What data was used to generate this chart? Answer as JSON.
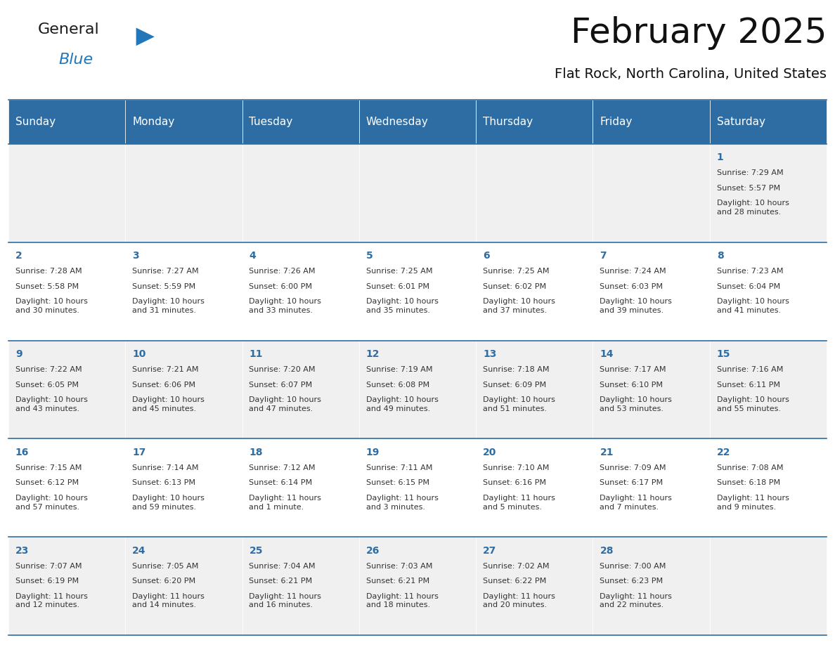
{
  "title": "February 2025",
  "subtitle": "Flat Rock, North Carolina, United States",
  "header_bg": "#2E6DA4",
  "header_text_color": "#FFFFFF",
  "cell_bg_even": "#F0F0F0",
  "cell_bg_odd": "#FFFFFF",
  "cell_text_color": "#333333",
  "day_number_color": "#2E6DA4",
  "separator_color": "#2E6DA4",
  "days_of_week": [
    "Sunday",
    "Monday",
    "Tuesday",
    "Wednesday",
    "Thursday",
    "Friday",
    "Saturday"
  ],
  "weeks": [
    [
      null,
      null,
      null,
      null,
      null,
      null,
      1
    ],
    [
      2,
      3,
      4,
      5,
      6,
      7,
      8
    ],
    [
      9,
      10,
      11,
      12,
      13,
      14,
      15
    ],
    [
      16,
      17,
      18,
      19,
      20,
      21,
      22
    ],
    [
      23,
      24,
      25,
      26,
      27,
      28,
      null
    ]
  ],
  "sun_data": {
    "1": {
      "rise": "7:29 AM",
      "set": "5:57 PM",
      "daylight": "10 hours\nand 28 minutes."
    },
    "2": {
      "rise": "7:28 AM",
      "set": "5:58 PM",
      "daylight": "10 hours\nand 30 minutes."
    },
    "3": {
      "rise": "7:27 AM",
      "set": "5:59 PM",
      "daylight": "10 hours\nand 31 minutes."
    },
    "4": {
      "rise": "7:26 AM",
      "set": "6:00 PM",
      "daylight": "10 hours\nand 33 minutes."
    },
    "5": {
      "rise": "7:25 AM",
      "set": "6:01 PM",
      "daylight": "10 hours\nand 35 minutes."
    },
    "6": {
      "rise": "7:25 AM",
      "set": "6:02 PM",
      "daylight": "10 hours\nand 37 minutes."
    },
    "7": {
      "rise": "7:24 AM",
      "set": "6:03 PM",
      "daylight": "10 hours\nand 39 minutes."
    },
    "8": {
      "rise": "7:23 AM",
      "set": "6:04 PM",
      "daylight": "10 hours\nand 41 minutes."
    },
    "9": {
      "rise": "7:22 AM",
      "set": "6:05 PM",
      "daylight": "10 hours\nand 43 minutes."
    },
    "10": {
      "rise": "7:21 AM",
      "set": "6:06 PM",
      "daylight": "10 hours\nand 45 minutes."
    },
    "11": {
      "rise": "7:20 AM",
      "set": "6:07 PM",
      "daylight": "10 hours\nand 47 minutes."
    },
    "12": {
      "rise": "7:19 AM",
      "set": "6:08 PM",
      "daylight": "10 hours\nand 49 minutes."
    },
    "13": {
      "rise": "7:18 AM",
      "set": "6:09 PM",
      "daylight": "10 hours\nand 51 minutes."
    },
    "14": {
      "rise": "7:17 AM",
      "set": "6:10 PM",
      "daylight": "10 hours\nand 53 minutes."
    },
    "15": {
      "rise": "7:16 AM",
      "set": "6:11 PM",
      "daylight": "10 hours\nand 55 minutes."
    },
    "16": {
      "rise": "7:15 AM",
      "set": "6:12 PM",
      "daylight": "10 hours\nand 57 minutes."
    },
    "17": {
      "rise": "7:14 AM",
      "set": "6:13 PM",
      "daylight": "10 hours\nand 59 minutes."
    },
    "18": {
      "rise": "7:12 AM",
      "set": "6:14 PM",
      "daylight": "11 hours\nand 1 minute."
    },
    "19": {
      "rise": "7:11 AM",
      "set": "6:15 PM",
      "daylight": "11 hours\nand 3 minutes."
    },
    "20": {
      "rise": "7:10 AM",
      "set": "6:16 PM",
      "daylight": "11 hours\nand 5 minutes."
    },
    "21": {
      "rise": "7:09 AM",
      "set": "6:17 PM",
      "daylight": "11 hours\nand 7 minutes."
    },
    "22": {
      "rise": "7:08 AM",
      "set": "6:18 PM",
      "daylight": "11 hours\nand 9 minutes."
    },
    "23": {
      "rise": "7:07 AM",
      "set": "6:19 PM",
      "daylight": "11 hours\nand 12 minutes."
    },
    "24": {
      "rise": "7:05 AM",
      "set": "6:20 PM",
      "daylight": "11 hours\nand 14 minutes."
    },
    "25": {
      "rise": "7:04 AM",
      "set": "6:21 PM",
      "daylight": "11 hours\nand 16 minutes."
    },
    "26": {
      "rise": "7:03 AM",
      "set": "6:21 PM",
      "daylight": "11 hours\nand 18 minutes."
    },
    "27": {
      "rise": "7:02 AM",
      "set": "6:22 PM",
      "daylight": "11 hours\nand 20 minutes."
    },
    "28": {
      "rise": "7:00 AM",
      "set": "6:23 PM",
      "daylight": "11 hours\nand 22 minutes."
    }
  },
  "logo_text_general": "General",
  "logo_text_blue": "Blue",
  "logo_color_general": "#1a1a1a",
  "logo_color_blue": "#2277BB",
  "logo_triangle_color": "#2277BB",
  "title_fontsize": 36,
  "subtitle_fontsize": 14,
  "header_fontsize": 11,
  "day_num_fontsize": 10,
  "cell_text_fontsize": 8
}
